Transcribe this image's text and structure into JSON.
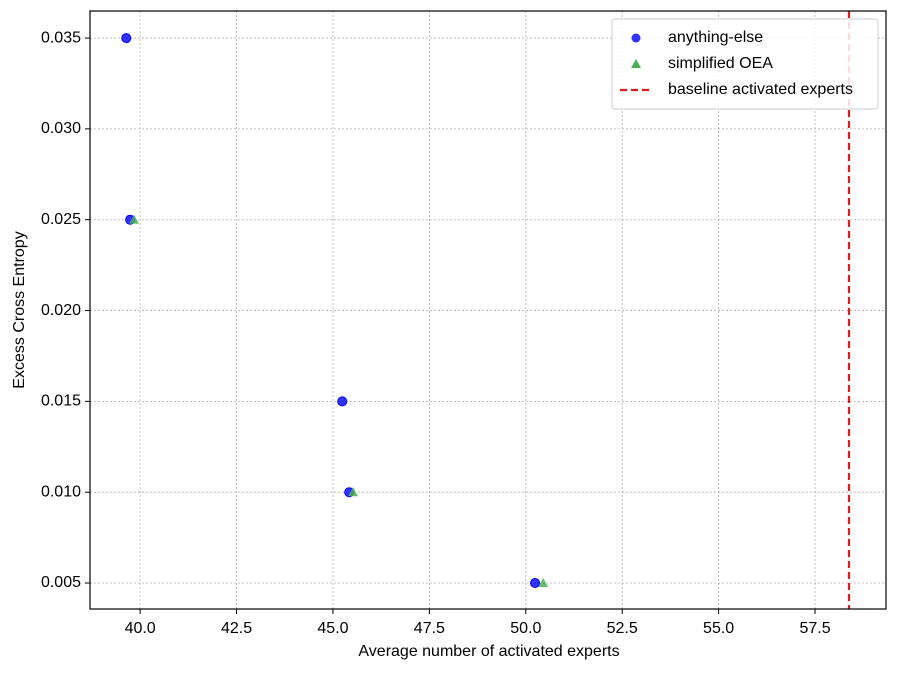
{
  "chart_data": {
    "type": "scatter",
    "xlabel": "Average number of activated experts",
    "ylabel": "Excess Cross Entropy",
    "xlim": [
      38.7,
      59.34
    ],
    "ylim": [
      0.00357,
      0.03649
    ],
    "xticks": [
      {
        "value": 40,
        "label": "40.0"
      },
      {
        "value": 42.5,
        "label": "42.5"
      },
      {
        "value": 45,
        "label": "45.0"
      },
      {
        "value": 47.5,
        "label": "47.5"
      },
      {
        "value": 50,
        "label": "50.0"
      },
      {
        "value": 52.5,
        "label": "52.5"
      },
      {
        "value": 55,
        "label": "55.0"
      },
      {
        "value": 57.5,
        "label": "57.5"
      }
    ],
    "yticks": [
      0.005,
      {
        "value": 0.01,
        "label": "0.010"
      },
      0.015,
      {
        "value": 0.02,
        "label": "0.020"
      },
      0.025,
      {
        "value": 0.03,
        "label": "0.030"
      },
      0.035
    ],
    "grid": true,
    "legend": "upper right",
    "series": [
      {
        "name": "anything-else",
        "color": "#0000ff",
        "marker": "circle",
        "x": [
          39.64,
          39.74,
          45.24,
          45.42,
          50.24
        ],
        "values": [
          0.035,
          0.025,
          0.015,
          0.01,
          0.005
        ]
      },
      {
        "name": "simplified OEA",
        "color": "#4caf50",
        "marker": "triangle",
        "x": [
          39.84,
          45.52,
          50.45
        ],
        "values": [
          0.025,
          0.01,
          0.005
        ]
      }
    ],
    "vlines": [
      {
        "name": "baseline activated experts",
        "color": "#e41a1c",
        "x": 58.38
      }
    ]
  }
}
